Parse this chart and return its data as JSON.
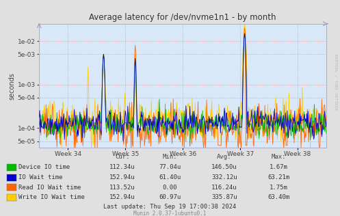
{
  "title": "Average latency for /dev/nvme1n1 - by month",
  "ylabel": "seconds",
  "xlabel_ticks": [
    "Week 34",
    "Week 35",
    "Week 36",
    "Week 37",
    "Week 38"
  ],
  "background_color": "#e0e0e0",
  "plot_bg_color": "#d8e8f8",
  "grid_color_h": "#ff8888",
  "grid_color_v": "#ff8888",
  "yticks": [
    5e-05,
    0.0001,
    0.0005,
    0.001,
    0.005,
    0.01
  ],
  "ytick_labels": [
    "5e-05",
    "1e-04",
    "5e-04",
    "1e-03",
    "5e-03",
    "1e-02"
  ],
  "series_colors": [
    "#00bb00",
    "#0000cc",
    "#ff6600",
    "#ffcc00"
  ],
  "series_labels": [
    "Device IO time",
    "IO Wait time",
    "Read IO Wait time",
    "Write IO Wait time"
  ],
  "legend_headers": [
    "Cur:",
    "Min:",
    "Avg:",
    "Max:"
  ],
  "legend_rows": [
    [
      "112.34u",
      "77.04u",
      "146.50u",
      "1.67m"
    ],
    [
      "152.94u",
      "61.40u",
      "332.12u",
      "63.21m"
    ],
    [
      "113.52u",
      "0.00",
      "116.24u",
      "1.75m"
    ],
    [
      "152.94u",
      "60.97u",
      "335.87u",
      "63.40m"
    ]
  ],
  "last_update": "Last update: Thu Sep 19 17:00:38 2024",
  "munin_version": "Munin 2.0.37-1ubuntu0.1",
  "rrdtool_label": "RRDTOOL / TOBI OETIKER",
  "n_points": 500,
  "seed": 42
}
